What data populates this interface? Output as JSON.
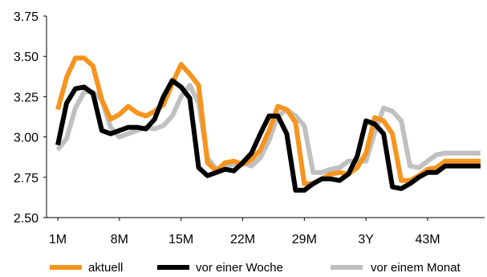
{
  "chart_data": {
    "type": "line",
    "title": "",
    "xlabel": "",
    "ylabel": "",
    "ylim": [
      2.5,
      3.75
    ],
    "yticks": [
      "2.50",
      "2.75",
      "3.00",
      "3.25",
      "3.50",
      "3.75"
    ],
    "ytick_values": [
      2.5,
      2.75,
      3.0,
      3.25,
      3.5,
      3.75
    ],
    "xticks": [
      "1M",
      "8M",
      "15M",
      "22M",
      "29M",
      "3Y",
      "43M"
    ],
    "xtick_months": [
      1,
      8,
      15,
      22,
      29,
      36,
      43
    ],
    "xlim_months": [
      1,
      49
    ],
    "grid": false,
    "legend_position": "bottom",
    "x_months": [
      1,
      2,
      3,
      4,
      5,
      6,
      7,
      8,
      9,
      10,
      11,
      12,
      13,
      14,
      15,
      16,
      17,
      18,
      19,
      20,
      21,
      22,
      23,
      24,
      25,
      26,
      27,
      28,
      29,
      30,
      31,
      32,
      33,
      34,
      35,
      36,
      37,
      38,
      39,
      40,
      41,
      42,
      43,
      44,
      45,
      46,
      47,
      48,
      49
    ],
    "series": [
      {
        "name": "aktuell",
        "color": "#f7941d",
        "values": [
          3.17,
          3.37,
          3.49,
          3.49,
          3.44,
          3.23,
          3.11,
          3.14,
          3.19,
          3.15,
          3.13,
          3.16,
          3.2,
          3.33,
          3.45,
          3.39,
          3.32,
          2.84,
          2.79,
          2.84,
          2.85,
          2.83,
          2.86,
          2.92,
          3.04,
          3.19,
          3.17,
          3.09,
          2.71,
          2.71,
          2.74,
          2.77,
          2.78,
          2.77,
          2.81,
          2.9,
          3.12,
          3.1,
          3.02,
          2.73,
          2.73,
          2.76,
          2.8,
          2.81,
          2.85,
          2.85,
          2.85,
          2.85,
          2.85
        ]
      },
      {
        "name": "vor einer Woche",
        "color": "#000000",
        "values": [
          2.95,
          3.21,
          3.3,
          3.31,
          3.27,
          3.04,
          3.02,
          3.04,
          3.06,
          3.06,
          3.05,
          3.11,
          3.25,
          3.35,
          3.31,
          3.24,
          2.81,
          2.76,
          2.78,
          2.8,
          2.79,
          2.84,
          2.9,
          3.02,
          3.13,
          3.13,
          3.02,
          2.67,
          2.67,
          2.71,
          2.74,
          2.74,
          2.73,
          2.77,
          2.88,
          3.1,
          3.08,
          3.02,
          2.69,
          2.68,
          2.71,
          2.75,
          2.78,
          2.78,
          2.82,
          2.82,
          2.82,
          2.82,
          2.82
        ]
      },
      {
        "name": "vor einem Monat",
        "color": "#c0c0c0",
        "values": [
          2.92,
          2.99,
          3.18,
          3.28,
          3.28,
          3.23,
          3.06,
          3.0,
          3.02,
          3.04,
          3.06,
          3.05,
          3.07,
          3.13,
          3.25,
          3.32,
          3.21,
          2.87,
          2.8,
          2.82,
          2.83,
          2.84,
          2.82,
          2.87,
          2.98,
          3.13,
          3.17,
          3.13,
          3.07,
          2.78,
          2.78,
          2.8,
          2.81,
          2.85,
          2.85,
          2.85,
          3.03,
          3.18,
          3.16,
          3.1,
          2.82,
          2.81,
          2.85,
          2.89,
          2.9,
          2.9,
          2.9,
          2.9,
          2.9
        ]
      }
    ]
  }
}
